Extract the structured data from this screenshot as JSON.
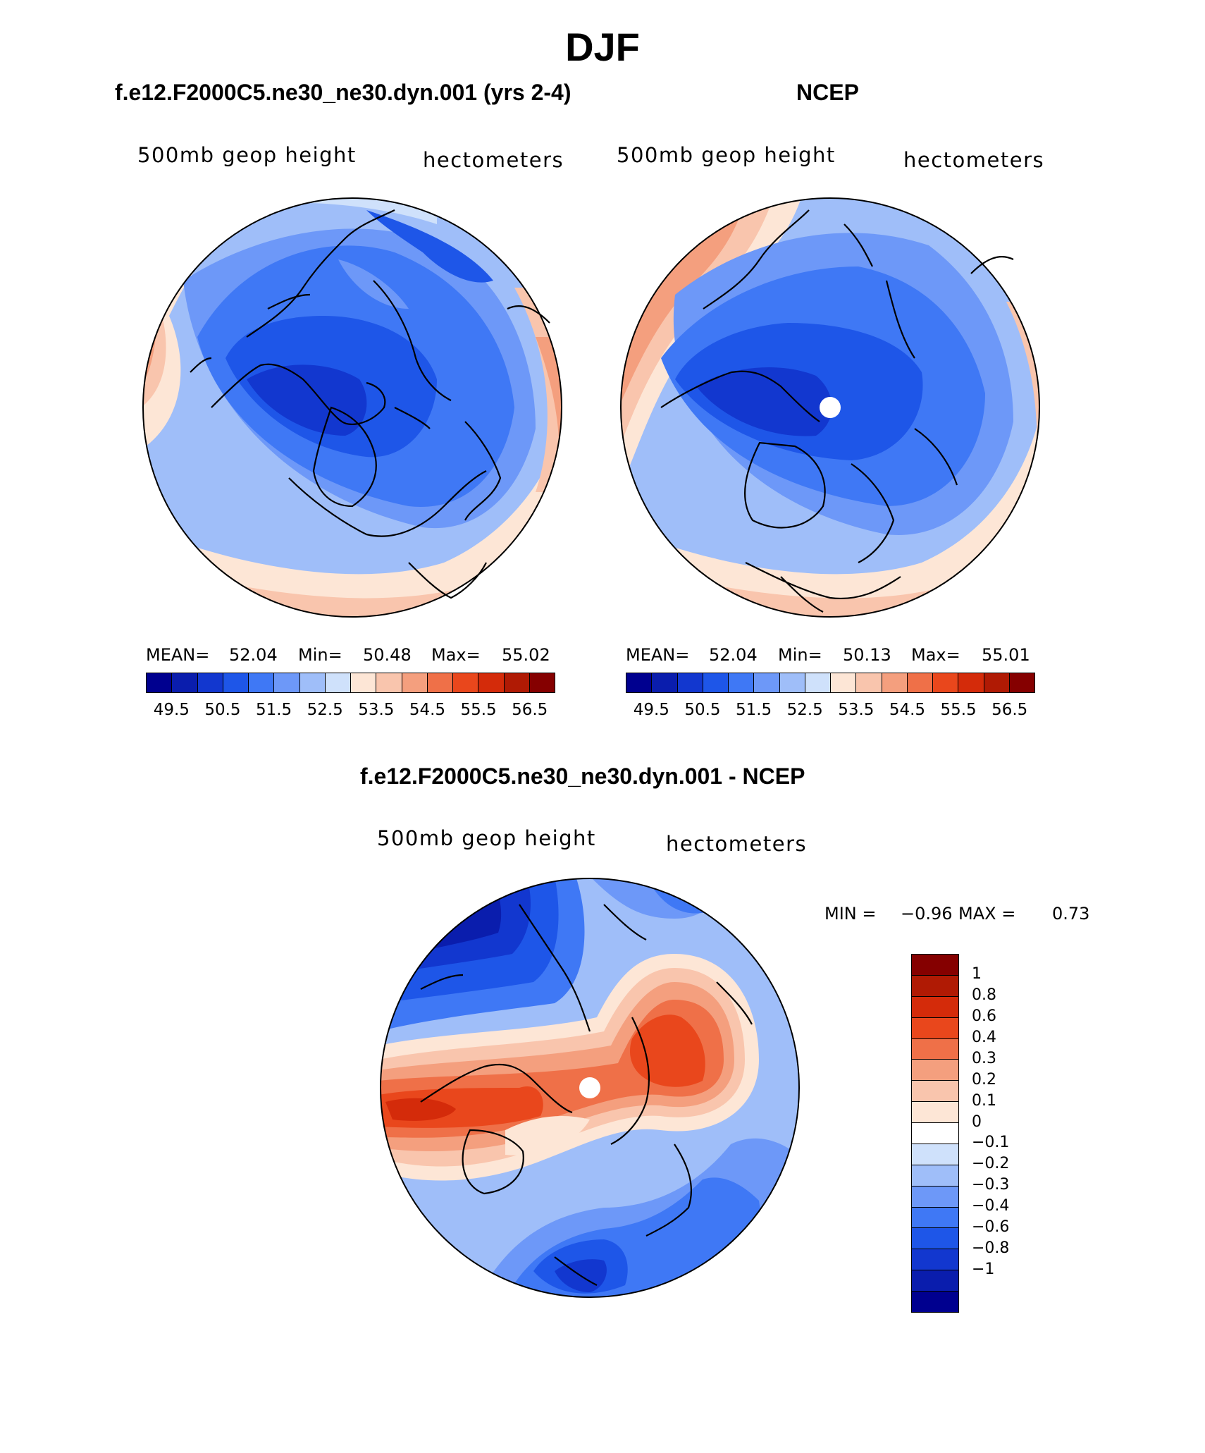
{
  "figure": {
    "season": "DJF"
  },
  "panels": [
    {
      "title": "f.e12.F2000C5.ne30_ne30.dyn.001 (yrs 2-4)",
      "variable": "500mb geop height",
      "units": "hectometers",
      "stats": {
        "mean_label": "MEAN=",
        "mean": "52.04",
        "min_label": "Min=",
        "min": "50.48",
        "max_label": "Max=",
        "max": "55.02"
      }
    },
    {
      "title": "NCEP",
      "variable": "500mb geop height",
      "units": "hectometers",
      "stats": {
        "mean_label": "MEAN=",
        "mean": "52.04",
        "min_label": "Min=",
        "min": "50.13",
        "max_label": "Max=",
        "max": "55.01"
      }
    },
    {
      "title": "f.e12.F2000C5.ne30_ne30.dyn.001 - NCEP",
      "variable": "500mb geop height",
      "units": "hectometers",
      "stats": {
        "min_label": "MIN =",
        "min": "−0.96",
        "max_label": "MAX =",
        "max": "0.73"
      }
    }
  ],
  "colorbars": {
    "absolute": {
      "ticks": [
        "49.5",
        "50.5",
        "51.5",
        "52.5",
        "53.5",
        "54.5",
        "55.5",
        "56.5"
      ],
      "colors": [
        "#00008f",
        "#0a1dad",
        "#1237cf",
        "#1e56e8",
        "#3f78f5",
        "#6d98f8",
        "#9fbef9",
        "#cfe1fb",
        "#fde6d6",
        "#f9c5ad",
        "#f49f7e",
        "#ef7048",
        "#e9471c",
        "#d42b0a",
        "#b01a04",
        "#850000"
      ]
    },
    "difference": {
      "ticks": [
        "1",
        "0.8",
        "0.6",
        "0.4",
        "0.3",
        "0.2",
        "0.1",
        "0",
        "−0.1",
        "−0.2",
        "−0.3",
        "−0.4",
        "−0.6",
        "−0.8",
        "−1"
      ],
      "colors": [
        "#850000",
        "#b01a04",
        "#d42b0a",
        "#e9471c",
        "#ef7048",
        "#f49f7e",
        "#f9c5ad",
        "#fde6d6",
        "#ffffff",
        "#cfe1fb",
        "#9fbef9",
        "#6d98f8",
        "#3f78f5",
        "#1e56e8",
        "#1237cf",
        "#0a1dad",
        "#00008f"
      ]
    }
  },
  "chart_data": [
    {
      "type": "heatmap",
      "projection": "north polar stereographic",
      "title": "f.e12.F2000C5.ne30_ne30.dyn.001 (yrs 2-4)",
      "variable": "500mb geop height",
      "units": "hectometers",
      "mean": 52.04,
      "min": 50.48,
      "max": 55.02,
      "levels": [
        49.5,
        50.0,
        50.5,
        51.0,
        51.5,
        52.0,
        52.5,
        53.0,
        53.5,
        54.0,
        54.5,
        55.0,
        55.5,
        56.0,
        56.5
      ]
    },
    {
      "type": "heatmap",
      "projection": "north polar stereographic",
      "title": "NCEP",
      "variable": "500mb geop height",
      "units": "hectometers",
      "mean": 52.04,
      "min": 50.13,
      "max": 55.01,
      "levels": [
        49.5,
        50.0,
        50.5,
        51.0,
        51.5,
        52.0,
        52.5,
        53.0,
        53.5,
        54.0,
        54.5,
        55.0,
        55.5,
        56.0,
        56.5
      ]
    },
    {
      "type": "heatmap",
      "projection": "north polar stereographic",
      "title": "f.e12.F2000C5.ne30_ne30.dyn.001 - NCEP",
      "variable": "500mb geop height",
      "units": "hectometers",
      "min": -0.96,
      "max": 0.73,
      "levels": [
        -1,
        -0.8,
        -0.6,
        -0.4,
        -0.3,
        -0.2,
        -0.1,
        0,
        0.1,
        0.2,
        0.3,
        0.4,
        0.6,
        0.8,
        1
      ]
    }
  ]
}
